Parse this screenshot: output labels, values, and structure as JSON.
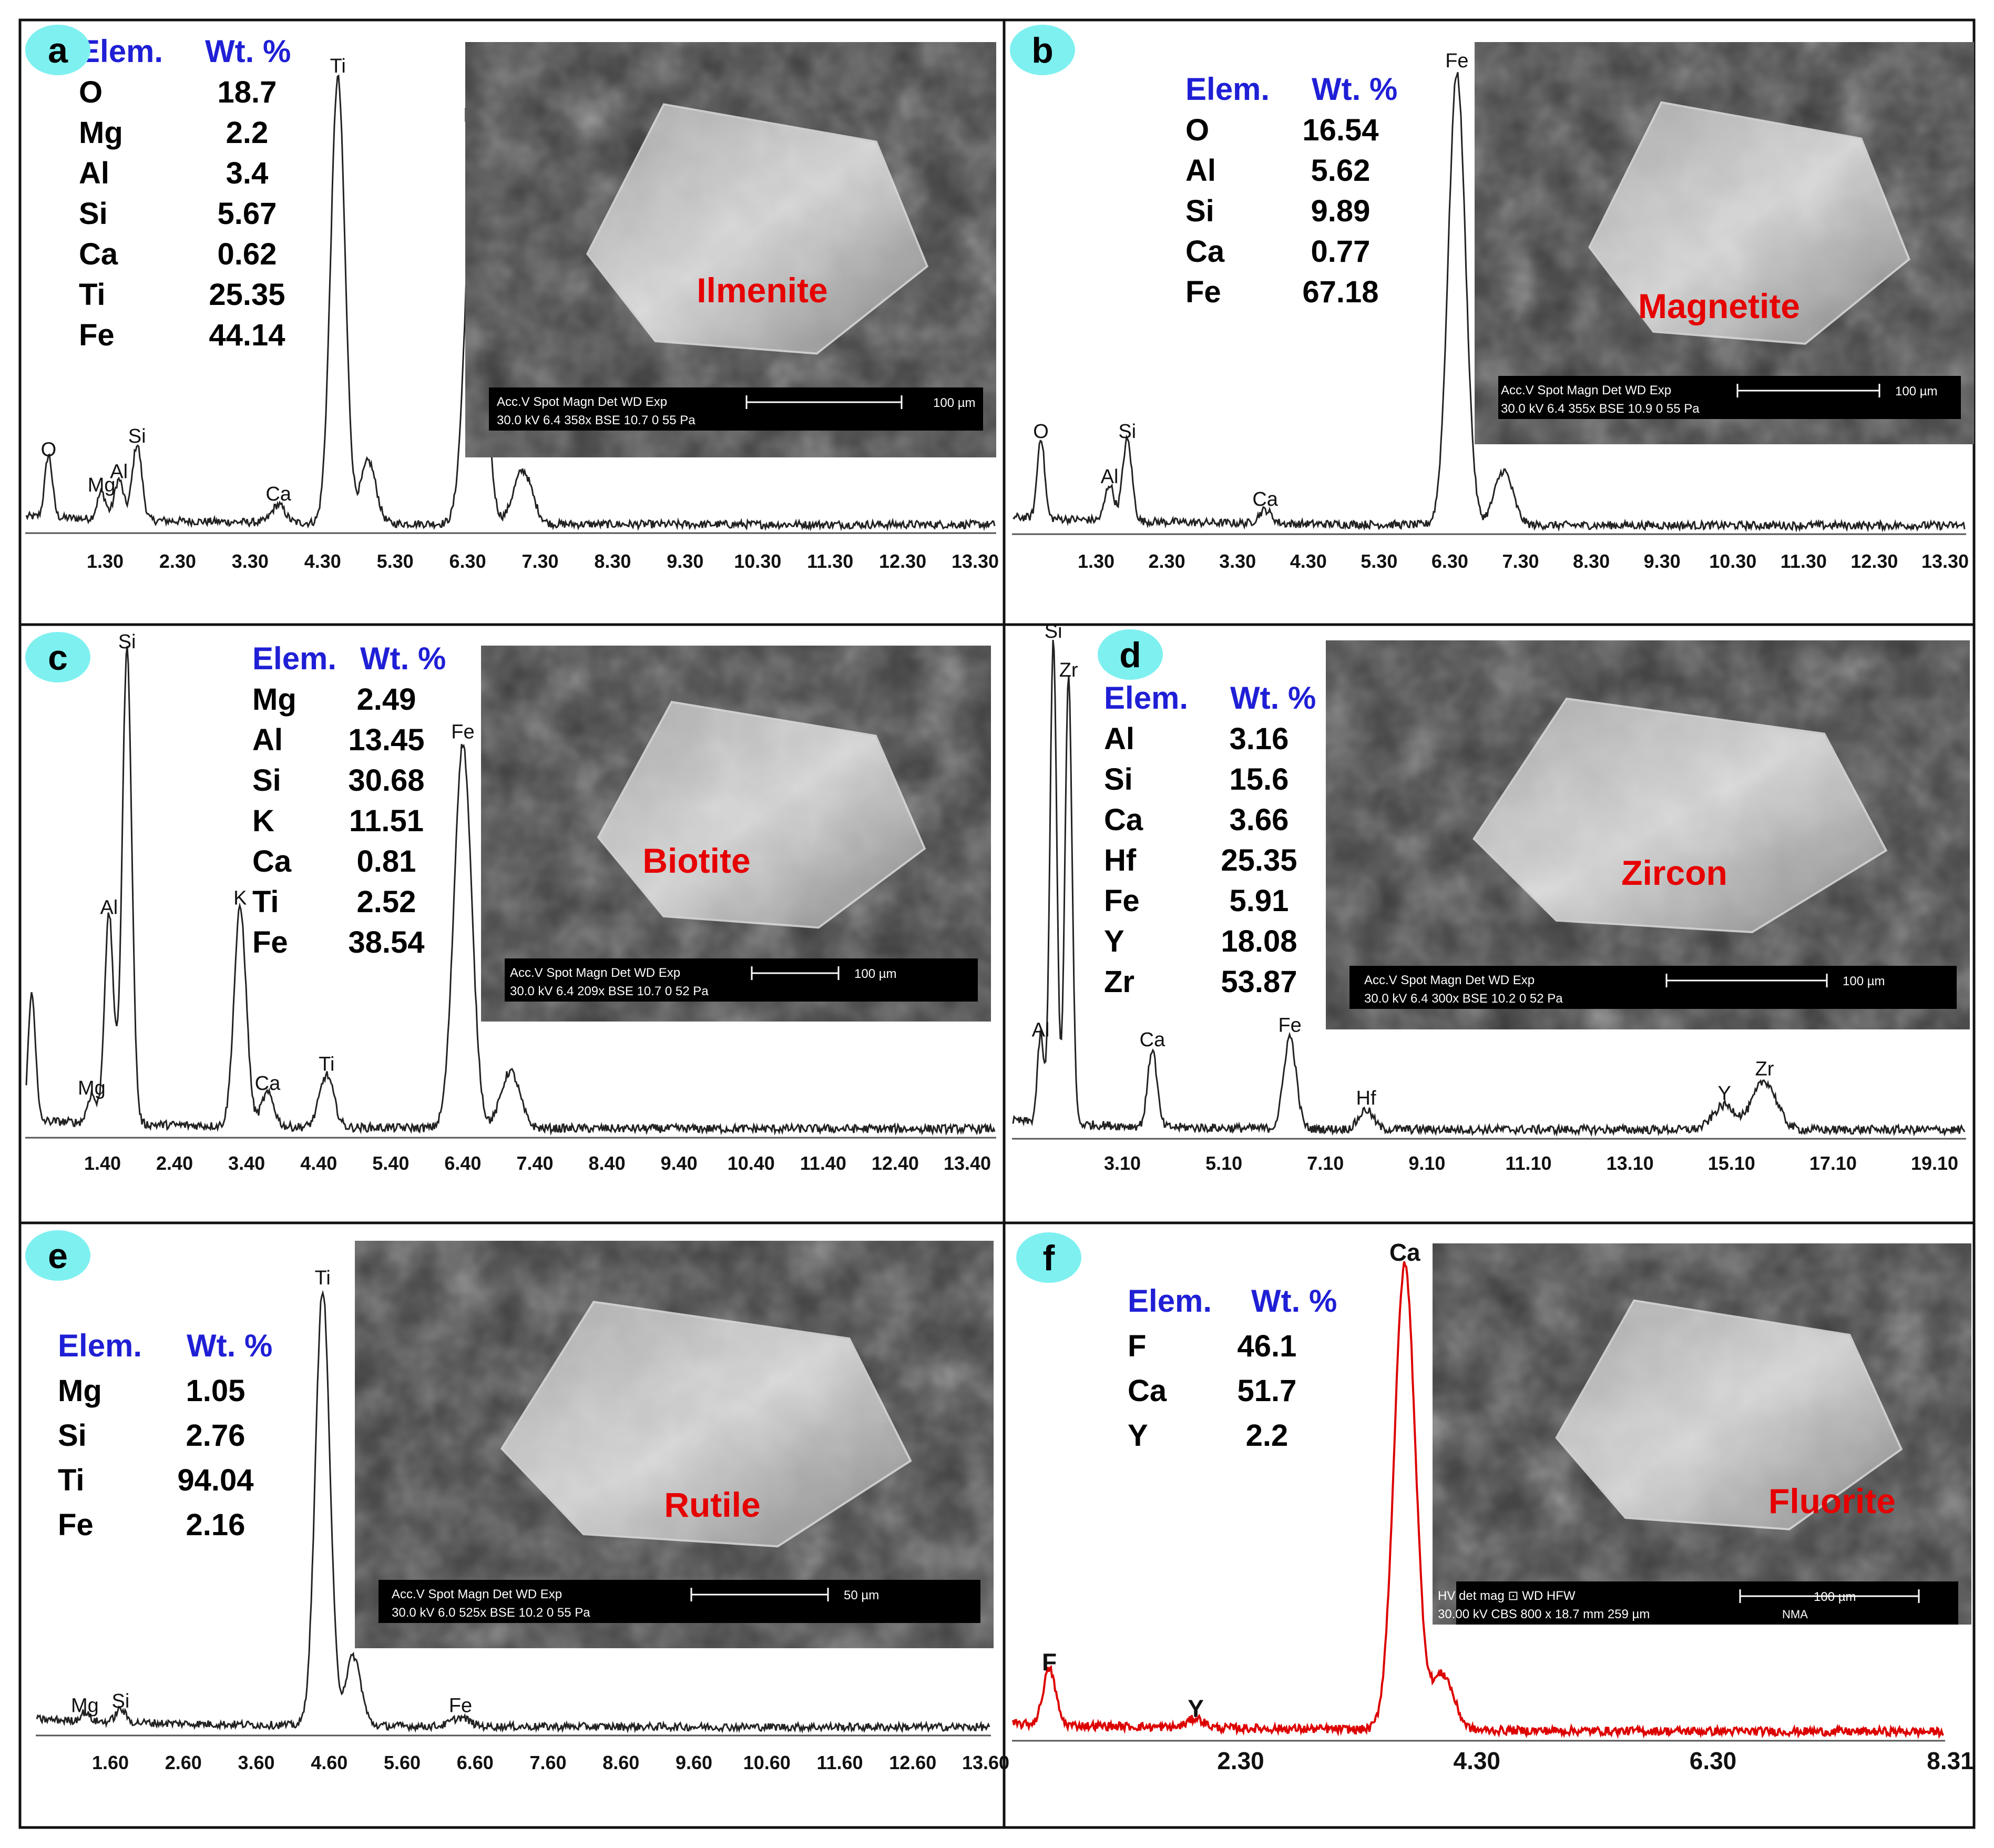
{
  "colors": {
    "elem_header": "#1f1fd6",
    "mineral_label": "#e60000",
    "badge": "#7ef0f0",
    "spectrum": "#222222",
    "spectrum_red": "#dd0000",
    "sem_bg": "#3a3a3a"
  },
  "panels": [
    {
      "id": "a",
      "badge": "a",
      "table_header": {
        "elem": "Elem.",
        "wt": "Wt. %"
      },
      "table": [
        {
          "elem": "O",
          "wt": "18.7"
        },
        {
          "elem": "Mg",
          "wt": "2.2"
        },
        {
          "elem": "Al",
          "wt": "3.4"
        },
        {
          "elem": "Si",
          "wt": "5.67"
        },
        {
          "elem": "Ca",
          "wt": "0.62"
        },
        {
          "elem": "Ti",
          "wt": "25.35"
        },
        {
          "elem": "Fe",
          "wt": "44.14"
        }
      ],
      "mineral": "Ilmenite",
      "sem_caption": {
        "line1": "Acc.V   Spot Magn      Det   WD   Exp",
        "line2": "30.0 kV 6.4   358x     BSE  10.7  0         55 Pa",
        "scale": "100 µm"
      }
    },
    {
      "id": "b",
      "badge": "b",
      "table_header": {
        "elem": "Elem.",
        "wt": "Wt. %"
      },
      "table": [
        {
          "elem": "O",
          "wt": "16.54"
        },
        {
          "elem": "Al",
          "wt": "5.62"
        },
        {
          "elem": "Si",
          "wt": "9.89"
        },
        {
          "elem": "Ca",
          "wt": "0.77"
        },
        {
          "elem": "Fe",
          "wt": "67.18"
        }
      ],
      "mineral": "Magnetite",
      "sem_caption": {
        "line1": "Acc.V   Spot Magn      Det   WD   Exp",
        "line2": "30.0 kV 6.4   355x     BSE  10.9  0         55 Pa",
        "scale": "100 µm"
      }
    },
    {
      "id": "c",
      "badge": "c",
      "table_header": {
        "elem": "Elem.",
        "wt": "Wt. %"
      },
      "table": [
        {
          "elem": "Mg",
          "wt": "2.49"
        },
        {
          "elem": "Al",
          "wt": "13.45"
        },
        {
          "elem": "Si",
          "wt": "30.68"
        },
        {
          "elem": "K",
          "wt": "11.51"
        },
        {
          "elem": "Ca",
          "wt": "0.81"
        },
        {
          "elem": "Ti",
          "wt": "2.52"
        },
        {
          "elem": "Fe",
          "wt": "38.54"
        }
      ],
      "mineral": "Biotite",
      "sem_caption": {
        "line1": "Acc.V   Spot Magn      Det   WD   Exp",
        "line2": "30.0 kV 6.4   209x     BSE  10.7  0         52 Pa",
        "scale": "100 µm"
      }
    },
    {
      "id": "d",
      "badge": "d",
      "table_header": {
        "elem": "Elem.",
        "wt": "Wt. %"
      },
      "table": [
        {
          "elem": "Al",
          "wt": "3.16"
        },
        {
          "elem": "Si",
          "wt": "15.6"
        },
        {
          "elem": "Ca",
          "wt": "3.66"
        },
        {
          "elem": "Hf",
          "wt": "25.35"
        },
        {
          "elem": "Fe",
          "wt": "5.91"
        },
        {
          "elem": "Y",
          "wt": "18.08"
        },
        {
          "elem": "Zr",
          "wt": "53.87"
        }
      ],
      "mineral": "Zircon",
      "sem_caption": {
        "line1": "Acc.V   Spot Magn      Det   WD   Exp",
        "line2": "30.0 kV 6.4   300x     BSE  10.2  0         52 Pa",
        "scale": "100 µm"
      }
    },
    {
      "id": "e",
      "badge": "e",
      "table_header": {
        "elem": "Elem.",
        "wt": "Wt. %"
      },
      "table": [
        {
          "elem": "Mg",
          "wt": "1.05"
        },
        {
          "elem": "Si",
          "wt": "2.76"
        },
        {
          "elem": "Ti",
          "wt": "94.04"
        },
        {
          "elem": "Fe",
          "wt": "2.16"
        }
      ],
      "mineral": "Rutile",
      "sem_caption": {
        "line1": "Acc.V   Spot Magn      Det   WD   Exp",
        "line2": "30.0 kV 6.0   525x     BSE  10.2  0         55 Pa",
        "scale": "50 µm"
      }
    },
    {
      "id": "f",
      "badge": "f",
      "table_header": {
        "elem": "Elem.",
        "wt": "Wt. %"
      },
      "table": [
        {
          "elem": "F",
          "wt": "46.1"
        },
        {
          "elem": "Ca",
          "wt": "51.7"
        },
        {
          "elem": "Y",
          "wt": "2.2"
        }
      ],
      "mineral": "Fluorite",
      "sem_caption": {
        "line1": "HV      det   mag ⊡   WD       HFW",
        "line2": "30.00 kV CBS  800 x  18.7 mm  259 µm",
        "scale": "100 µm",
        "extra": "NMA"
      }
    }
  ],
  "chart_data": [
    {
      "type": "line",
      "panel": "a",
      "tick_labels": [
        "1.30",
        "2.30",
        "3.30",
        "4.30",
        "5.30",
        "6.30",
        "7.30",
        "8.30",
        "9.30",
        "10.30",
        "11.30",
        "12.30",
        "13.30"
      ],
      "xlim": [
        0.3,
        14.1
      ],
      "ylim": [
        0,
        100
      ],
      "peaks": [
        {
          "label": "O",
          "x": 0.52,
          "y": 14
        },
        {
          "label": "Mg",
          "x": 1.25,
          "y": 6
        },
        {
          "label": "Al",
          "x": 1.49,
          "y": 9
        },
        {
          "label": "Si",
          "x": 1.74,
          "y": 17
        },
        {
          "label": "Ca",
          "x": 3.69,
          "y": 4
        },
        {
          "label": "Ti",
          "x": 4.51,
          "y": 100
        },
        {
          "label": "",
          "x": 4.93,
          "y": 14
        },
        {
          "label": "Fe",
          "x": 6.4,
          "y": 89
        },
        {
          "label": "",
          "x": 7.06,
          "y": 12
        }
      ]
    },
    {
      "type": "line",
      "panel": "b",
      "tick_labels": [
        "1.30",
        "2.30",
        "3.30",
        "4.30",
        "5.30",
        "6.30",
        "7.30",
        "8.30",
        "9.30",
        "10.30",
        "11.30",
        "12.30",
        "13.30"
      ],
      "xlim": [
        0.3,
        14.1
      ],
      "ylim": [
        0,
        100
      ],
      "peaks": [
        {
          "label": "O",
          "x": 0.52,
          "y": 18
        },
        {
          "label": "Al",
          "x": 1.49,
          "y": 8
        },
        {
          "label": "Si",
          "x": 1.74,
          "y": 18
        },
        {
          "label": "Ca",
          "x": 3.69,
          "y": 3
        },
        {
          "label": "Fe",
          "x": 6.4,
          "y": 100
        },
        {
          "label": "",
          "x": 7.06,
          "y": 12
        }
      ]
    },
    {
      "type": "line",
      "panel": "c",
      "tick_labels": [
        "1.40",
        "2.40",
        "3.40",
        "4.40",
        "5.40",
        "6.40",
        "7.40",
        "8.40",
        "9.40",
        "10.40",
        "11.40",
        "12.40",
        "13.40"
      ],
      "xlim": [
        0.4,
        14.2
      ],
      "ylim": [
        0,
        100
      ],
      "peaks": [
        {
          "label": "",
          "x": 0.42,
          "y": 27
        },
        {
          "label": "Mg",
          "x": 1.25,
          "y": 6
        },
        {
          "label": "Al",
          "x": 1.49,
          "y": 44
        },
        {
          "label": "Si",
          "x": 1.74,
          "y": 100
        },
        {
          "label": "K",
          "x": 3.31,
          "y": 46
        },
        {
          "label": "Ca",
          "x": 3.69,
          "y": 7
        },
        {
          "label": "Ti",
          "x": 4.51,
          "y": 11
        },
        {
          "label": "Fe",
          "x": 6.4,
          "y": 81
        },
        {
          "label": "",
          "x": 7.06,
          "y": 12
        }
      ]
    },
    {
      "type": "line",
      "panel": "d",
      "tick_labels": [
        "3.10",
        "5.10",
        "7.10",
        "9.10",
        "11.10",
        "13.10",
        "15.10",
        "17.10",
        "19.10"
      ],
      "xlim": [
        1.1,
        19.7
      ],
      "ylim": [
        0,
        100
      ],
      "peaks": [
        {
          "label": "Al",
          "x": 1.49,
          "y": 18
        },
        {
          "label": "Si",
          "x": 1.74,
          "y": 100
        },
        {
          "label": "Zr",
          "x": 2.04,
          "y": 92
        },
        {
          "label": "Ca",
          "x": 3.69,
          "y": 16
        },
        {
          "label": "Fe",
          "x": 6.4,
          "y": 19
        },
        {
          "label": "Hf",
          "x": 7.9,
          "y": 4
        },
        {
          "label": "Y",
          "x": 14.96,
          "y": 5
        },
        {
          "label": "Zr",
          "x": 15.75,
          "y": 10
        }
      ]
    },
    {
      "type": "line",
      "panel": "e",
      "tick_labels": [
        "1.60",
        "2.60",
        "3.60",
        "4.60",
        "5.60",
        "6.60",
        "7.60",
        "8.60",
        "9.60",
        "10.60",
        "11.60",
        "12.60",
        "13.60"
      ],
      "xlim": [
        0.6,
        14.2
      ],
      "ylim": [
        0,
        100
      ],
      "peaks": [
        {
          "label": "Mg",
          "x": 1.25,
          "y": 2
        },
        {
          "label": "Si",
          "x": 1.74,
          "y": 3
        },
        {
          "label": "Ti",
          "x": 4.51,
          "y": 100
        },
        {
          "label": "",
          "x": 4.93,
          "y": 16
        },
        {
          "label": "Fe",
          "x": 6.4,
          "y": 2
        }
      ]
    },
    {
      "type": "line",
      "panel": "f",
      "tick_labels": [
        "2.30",
        "4.30",
        "6.30",
        "8.31"
      ],
      "xlim": [
        0.3,
        8.31
      ],
      "ylim": [
        0,
        100
      ],
      "peaks": [
        {
          "label": "F",
          "x": 0.68,
          "y": 12
        },
        {
          "label": "Y",
          "x": 1.92,
          "y": 2
        },
        {
          "label": "Ca",
          "x": 3.69,
          "y": 100
        },
        {
          "label": "",
          "x": 4.01,
          "y": 12
        }
      ]
    }
  ]
}
